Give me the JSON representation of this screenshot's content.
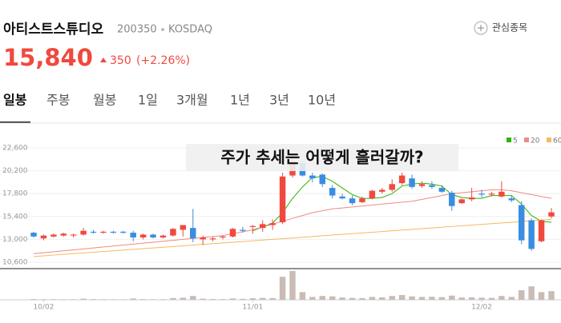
{
  "header": {
    "name": "아티스트스튜디오",
    "code": "200350",
    "market": "KOSDAQ",
    "watch": "관심종목",
    "price": "15,840",
    "change": "350",
    "change_pct": "(+2.26%)"
  },
  "tabs": [
    "일봉",
    "주봉",
    "월봉",
    "1일",
    "3개월",
    "1년",
    "3년",
    "10년"
  ],
  "chart_data": {
    "type": "candlestick",
    "headline": "주가 추세는 어떻게 흘러갈까?",
    "up_color": "#f0493e",
    "down_color": "#3a8de0",
    "volume_color": "#c9bbb5",
    "categories": [
      null,
      "10/02",
      null,
      null,
      null,
      null,
      null,
      null,
      null,
      null,
      null,
      null,
      null,
      null,
      null,
      null,
      null,
      null,
      null,
      null,
      null,
      null,
      "11/01",
      null,
      null,
      null,
      null,
      null,
      null,
      null,
      null,
      null,
      null,
      null,
      null,
      null,
      null,
      null,
      null,
      null,
      null,
      null,
      null,
      null,
      null,
      "12/02",
      null,
      null,
      null,
      null,
      null,
      null,
      null
    ],
    "open": [
      13700,
      13100,
      13300,
      13400,
      13400,
      13500,
      13800,
      13700,
      13800,
      13800,
      13700,
      13200,
      13500,
      13200,
      13400,
      14000,
      14200,
      13000,
      13000,
      13200,
      13300,
      14000,
      14300,
      14200,
      14500,
      14800,
      19700,
      21000,
      19700,
      19800,
      18400,
      17500,
      17300,
      16900,
      17300,
      18000,
      18200,
      18900,
      19400,
      18600,
      18700,
      18400,
      17900,
      16800,
      17200,
      17800,
      17700,
      17500,
      17300,
      16600,
      15000,
      12800,
      15400
    ],
    "high": [
      13800,
      13500,
      13600,
      13700,
      13600,
      14200,
      14000,
      13900,
      13900,
      13900,
      13900,
      13600,
      13600,
      13500,
      14200,
      14500,
      16200,
      13400,
      13300,
      13400,
      14200,
      14300,
      14500,
      15000,
      15100,
      20000,
      21600,
      21200,
      20000,
      19900,
      18700,
      17800,
      17600,
      17500,
      18200,
      18400,
      19300,
      20000,
      19800,
      19100,
      19100,
      18700,
      18100,
      17300,
      18400,
      18200,
      18000,
      19100,
      17600,
      17000,
      15200,
      15100,
      16300
    ],
    "low": [
      13200,
      12900,
      13200,
      13300,
      13200,
      13400,
      13600,
      13600,
      13600,
      13600,
      12800,
      13000,
      13100,
      13100,
      13300,
      13300,
      12700,
      12400,
      12800,
      13000,
      13200,
      13700,
      13600,
      13800,
      14000,
      14600,
      19500,
      19600,
      19000,
      18500,
      17300,
      17200,
      16600,
      16800,
      17200,
      17800,
      18000,
      18700,
      18300,
      18400,
      18300,
      17900,
      16000,
      16700,
      17000,
      17400,
      17500,
      17400,
      16900,
      12500,
      11800,
      12700,
      15200
    ],
    "close": [
      13300,
      13400,
      13500,
      13600,
      13500,
      13900,
      13700,
      13800,
      13700,
      13700,
      13200,
      13500,
      13200,
      13400,
      14100,
      14500,
      13100,
      13200,
      13100,
      13300,
      14100,
      13900,
      14400,
      14600,
      14700,
      19600,
      21200,
      19700,
      19400,
      18800,
      17600,
      17300,
      16800,
      17300,
      18100,
      18200,
      18800,
      19700,
      18500,
      18800,
      18500,
      18000,
      16500,
      17200,
      17400,
      17700,
      17800,
      18000,
      17100,
      12900,
      12000,
      15000,
      15840
    ],
    "volume": [
      40000,
      30000,
      30000,
      25000,
      30000,
      60000,
      35000,
      30000,
      25000,
      25000,
      70000,
      35000,
      30000,
      30000,
      90000,
      110000,
      200000,
      60000,
      40000,
      35000,
      70000,
      50000,
      80000,
      100000,
      90000,
      1200000,
      1500000,
      400000,
      150000,
      200000,
      180000,
      120000,
      100000,
      90000,
      150000,
      130000,
      200000,
      250000,
      180000,
      150000,
      160000,
      140000,
      220000,
      120000,
      130000,
      110000,
      100000,
      200000,
      150000,
      500000,
      700000,
      400000,
      450000
    ],
    "series": [
      {
        "name": "5",
        "color": "#2db400",
        "values": [
          null,
          null,
          null,
          null,
          null,
          null,
          null,
          null,
          null,
          null,
          null,
          null,
          null,
          null,
          null,
          null,
          null,
          null,
          null,
          null,
          null,
          null,
          13900,
          14300,
          14700,
          15800,
          17300,
          18500,
          19500,
          19600,
          19100,
          18400,
          17700,
          17300,
          17300,
          17400,
          17800,
          18600,
          18800,
          18900,
          18800,
          18600,
          17700,
          17400,
          17300,
          17300,
          17600,
          17600,
          17600,
          16700,
          15500,
          14900,
          14800
        ]
      },
      {
        "name": "20",
        "color": "#f08a80",
        "values": [
          11500,
          11600,
          11700,
          11800,
          11900,
          12000,
          12100,
          12200,
          12300,
          12400,
          12500,
          12600,
          12700,
          12800,
          12900,
          13000,
          13100,
          13200,
          13300,
          13400,
          13600,
          13800,
          14000,
          14300,
          14600,
          14900,
          15200,
          15500,
          15800,
          16000,
          16200,
          16300,
          16400,
          16500,
          16600,
          16700,
          16800,
          16900,
          17000,
          17200,
          17400,
          17600,
          17800,
          17900,
          18000,
          18100,
          18200,
          18200,
          18100,
          17900,
          17700,
          17500,
          17300
        ]
      },
      {
        "name": "60",
        "color": "#f5b860",
        "values": [
          11200,
          11275,
          11350,
          11425,
          11500,
          11575,
          11650,
          11725,
          11800,
          11875,
          11950,
          12025,
          12100,
          12175,
          12250,
          12325,
          12400,
          12475,
          12550,
          12625,
          12700,
          12775,
          12850,
          12925,
          13000,
          13075,
          13150,
          13225,
          13300,
          13375,
          13450,
          13525,
          13600,
          13675,
          13750,
          13825,
          13900,
          13975,
          14050,
          14125,
          14200,
          14275,
          14350,
          14425,
          14500,
          14575,
          14650,
          14725,
          14800,
          14875,
          14950,
          15025,
          15100
        ]
      }
    ],
    "ylim": [
      10600,
      22600
    ],
    "yticks": [
      {
        "value": 10600,
        "label": "10,600"
      },
      {
        "value": 13000,
        "label": "13,000"
      },
      {
        "value": 15400,
        "label": "15,400"
      },
      {
        "value": 17800,
        "label": "17,800"
      },
      {
        "value": 20200,
        "label": "20,200"
      },
      {
        "value": 22600,
        "label": "22,600"
      }
    ],
    "grid": true
  }
}
